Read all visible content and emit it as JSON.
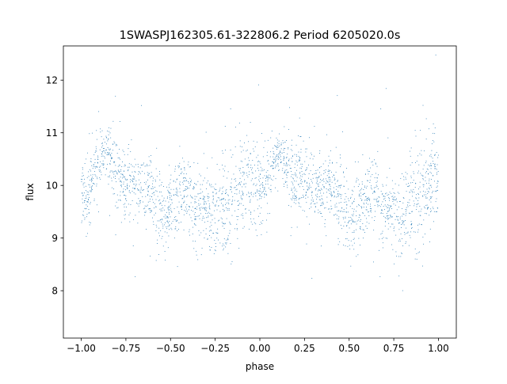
{
  "chart_data": {
    "type": "scatter",
    "title": "1SWASPJ162305.61-322806.2 Period 6205020.0s",
    "xlabel": "phase",
    "ylabel": "flux",
    "xlim": [
      -1.1,
      1.1
    ],
    "ylim": [
      7.1,
      12.65
    ],
    "xticks": [
      -1.0,
      -0.75,
      -0.5,
      -0.25,
      0.0,
      0.25,
      0.5,
      0.75,
      1.0
    ],
    "xtick_labels": [
      "−1.00",
      "−0.75",
      "−0.50",
      "−0.25",
      "0.00",
      "0.25",
      "0.50",
      "0.75",
      "1.00"
    ],
    "yticks": [
      8,
      9,
      10,
      11,
      12
    ],
    "ytick_labels": [
      "8",
      "9",
      "10",
      "11",
      "12"
    ],
    "grid": false,
    "legend": "none",
    "marker_color": "#1f77b4",
    "series": [
      {
        "phase": [
          -1.0,
          -0.97,
          -0.94,
          -0.91,
          -0.88,
          -0.85,
          -0.82,
          -0.79,
          -0.76,
          -0.73,
          -0.7,
          -0.67,
          -0.64,
          -0.61,
          -0.58,
          -0.55,
          -0.52,
          -0.49,
          -0.46,
          -0.43,
          -0.4,
          -0.37,
          -0.34,
          -0.31,
          -0.28,
          -0.25,
          -0.22,
          -0.19,
          -0.16,
          -0.13,
          -0.1,
          -0.07,
          -0.04,
          -0.01,
          0.02,
          0.05,
          0.08,
          0.11,
          0.14,
          0.17,
          0.2,
          0.23,
          0.26,
          0.29,
          0.32,
          0.35,
          0.38,
          0.41,
          0.44,
          0.47,
          0.5,
          0.53,
          0.56,
          0.59,
          0.62,
          0.65,
          0.68,
          0.71,
          0.74,
          0.77,
          0.8,
          0.83,
          0.86,
          0.89,
          0.92,
          0.95,
          0.98,
          1.0
        ],
        "flux_median": [
          9.9,
          9.75,
          10.1,
          10.3,
          10.55,
          10.6,
          10.35,
          10.05,
          10.05,
          10.05,
          10.0,
          9.95,
          9.95,
          9.85,
          9.7,
          9.5,
          9.45,
          9.6,
          9.75,
          9.85,
          9.8,
          9.6,
          9.45,
          9.5,
          9.5,
          9.55,
          9.6,
          9.65,
          9.7,
          9.8,
          9.9,
          10.05,
          10.1,
          10.15,
          10.0,
          10.15,
          10.45,
          10.6,
          10.45,
          10.25,
          10.05,
          10.05,
          10.05,
          10.0,
          9.95,
          9.95,
          9.95,
          9.9,
          9.8,
          9.65,
          9.5,
          9.45,
          9.6,
          9.75,
          9.85,
          9.8,
          9.6,
          9.45,
          9.5,
          9.5,
          9.55,
          9.6,
          9.65,
          9.75,
          9.9,
          10.05,
          10.1,
          10.0
        ],
        "flux_spread": [
          0.3,
          0.35,
          0.3,
          0.25,
          0.2,
          0.25,
          0.35,
          0.4,
          0.35,
          0.3,
          0.3,
          0.3,
          0.3,
          0.35,
          0.4,
          0.35,
          0.3,
          0.35,
          0.4,
          0.4,
          0.35,
          0.35,
          0.35,
          0.35,
          0.4,
          0.4,
          0.4,
          0.45,
          0.5,
          0.55,
          0.5,
          0.45,
          0.45,
          0.45,
          0.35,
          0.25,
          0.2,
          0.2,
          0.25,
          0.35,
          0.35,
          0.35,
          0.35,
          0.3,
          0.3,
          0.3,
          0.3,
          0.3,
          0.35,
          0.35,
          0.35,
          0.3,
          0.35,
          0.4,
          0.4,
          0.35,
          0.35,
          0.35,
          0.35,
          0.4,
          0.4,
          0.4,
          0.45,
          0.5,
          0.5,
          0.5,
          0.45,
          0.45
        ]
      }
    ]
  }
}
